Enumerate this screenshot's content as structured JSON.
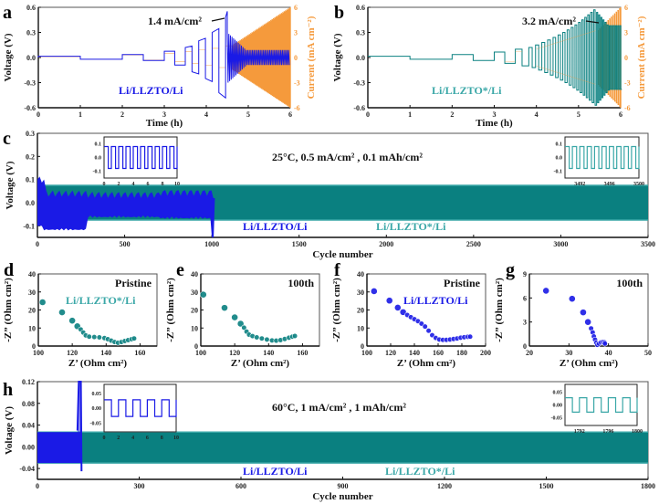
{
  "colors": {
    "blue": "#1a1ae6",
    "teal": "#0a8080",
    "teal_light": "#3aa7a7",
    "orange": "#f59a3c",
    "axis": "#333333"
  },
  "chart_data": [
    {
      "id": "a",
      "panel_letter": "a",
      "type": "line",
      "title": "",
      "xlabel": "Time (h)",
      "ylabel": "Voltage (V)",
      "ylabel_right": "Current (mA cm⁻²)",
      "xlim": [
        0,
        6
      ],
      "ylim": [
        -0.6,
        0.6
      ],
      "ylim_right": [
        -6,
        6
      ],
      "x_ticks": [
        "0",
        "1",
        "2",
        "3",
        "4",
        "5",
        "6"
      ],
      "y_ticks": [
        "-0.6",
        "-0.3",
        "0.0",
        "0.3",
        "0.6"
      ],
      "y_ticks_right": [
        "-6",
        "-3",
        "0",
        "3",
        "6"
      ],
      "annotation": "1.4 mA/cm²",
      "legend": "Li/LLZTO/Li",
      "series": [
        {
          "name": "Li/LLZTO/Li voltage",
          "color": "blue",
          "axis": "left",
          "steps": [
            [
              0,
              1,
              0.015
            ],
            [
              1,
              2,
              -0.02
            ],
            [
              2,
              2.5,
              0.035
            ],
            [
              2.5,
              3,
              -0.035
            ],
            [
              3,
              3.25,
              0.075
            ],
            [
              3.25,
              3.5,
              -0.09
            ],
            [
              3.5,
              3.66,
              0.12
            ],
            [
              3.66,
              3.82,
              -0.17
            ],
            [
              3.82,
              3.98,
              0.2
            ],
            [
              3.98,
              4.14,
              -0.25
            ],
            [
              4.14,
              4.3,
              0.3
            ],
            [
              4.3,
              4.46,
              -0.42
            ],
            [
              4.46,
              4.5,
              0.48
            ]
          ],
          "decay_region": {
            "start": 4.5,
            "end": 6,
            "amplitude_start": 0.3,
            "amplitude_end": 0.09
          }
        },
        {
          "name": "Current",
          "color": "orange",
          "axis": "right",
          "ramp": {
            "start": 4.6,
            "end": 6,
            "amplitude_start": 1.4,
            "amplitude_end": 6
          }
        }
      ]
    },
    {
      "id": "b",
      "panel_letter": "b",
      "type": "line",
      "xlabel": "Time (h)",
      "ylabel": "Voltage (V)",
      "ylabel_right": "Current (mA cm⁻²)",
      "xlim": [
        0,
        6
      ],
      "ylim": [
        -0.6,
        0.6
      ],
      "ylim_right": [
        -6,
        6
      ],
      "x_ticks": [
        "0",
        "1",
        "2",
        "3",
        "4",
        "5",
        "6"
      ],
      "y_ticks": [
        "-0.6",
        "-0.3",
        "0.0",
        "0.3",
        "0.6"
      ],
      "y_ticks_right": [
        "-6",
        "-3",
        "0",
        "3",
        "6"
      ],
      "annotation": "3.2 mA/cm²",
      "legend": "Li/LLZTO*/Li",
      "series": [
        {
          "name": "Li/LLZTO*/Li voltage",
          "color": "teal",
          "peak_voltage": 0.48,
          "peak_time": 5.4
        },
        {
          "name": "Current",
          "color": "orange",
          "axis": "right",
          "ramp": {
            "start": 5.45,
            "end": 6,
            "amplitude_start": 3.2,
            "amplitude_end": 6
          }
        }
      ]
    },
    {
      "id": "c",
      "panel_letter": "c",
      "type": "line",
      "xlabel": "Cycle number",
      "ylabel": "Voltage (V)",
      "xlim": [
        0,
        3500
      ],
      "ylim": [
        -0.15,
        0.3
      ],
      "x_ticks": [
        "0",
        "500",
        "1000",
        "1500",
        "2000",
        "2500",
        "3000",
        "3500"
      ],
      "y_ticks": [
        "-0.1",
        "0.0",
        "0.1",
        "0.2",
        "0.3"
      ],
      "annotation": "25°C, 0.5 mA/cm² , 0.1 mAh/cm²",
      "legends": [
        "Li/LLZTO/Li",
        "Li/LLZTO*/Li"
      ],
      "series": [
        {
          "name": "Li/LLZTO*/Li",
          "color": "teal",
          "x_end": 3500,
          "band": [
            -0.075,
            0.075
          ]
        },
        {
          "name": "Li/LLZTO/Li",
          "color": "blue",
          "x_end": 1010,
          "short_circuit_cycle": 1010
        }
      ],
      "insets": [
        {
          "xlim": [
            0,
            10
          ],
          "ylim": [
            -0.15,
            0.15
          ],
          "x_ticks": [
            "0",
            "2",
            "4",
            "6",
            "8",
            "10"
          ],
          "y_ticks": [
            "-0.1",
            "0.0",
            "0.1"
          ],
          "color": "blue",
          "amplitude": 0.08,
          "periods": 10
        },
        {
          "xlim": [
            3490,
            3500
          ],
          "ylim": [
            -0.15,
            0.15
          ],
          "x_ticks": [
            "3492",
            "3496",
            "3500"
          ],
          "y_ticks": [
            "-0.1",
            "0.0",
            "0.1"
          ],
          "color": "teal_light",
          "amplitude": 0.08,
          "periods": 10
        }
      ]
    },
    {
      "id": "d",
      "panel_letter": "d",
      "type": "scatter",
      "xlabel": "Z’ (Ohm cm²)",
      "ylabel": "-Z” (Ohm cm²)",
      "xlim": [
        100,
        170
      ],
      "ylim": [
        0,
        40
      ],
      "x_ticks": [
        "100",
        "120",
        "140",
        "160"
      ],
      "y_ticks": [
        "0",
        "10",
        "20",
        "30",
        "40"
      ],
      "annotation": "Pristine",
      "legend": "Li/LLZTO*/Li",
      "color": "teal",
      "x": [
        102.5,
        114,
        120,
        123,
        125,
        126.5,
        128,
        130,
        133,
        136,
        139,
        141,
        143,
        145,
        147,
        149,
        151,
        153,
        155,
        156.5
      ],
      "y": [
        24.3,
        18.7,
        14.1,
        11.0,
        9.2,
        7.5,
        5.9,
        5.2,
        5.0,
        4.8,
        4.4,
        3.8,
        3.0,
        2.2,
        1.8,
        2.2,
        2.8,
        3.3,
        3.8,
        4.2
      ]
    },
    {
      "id": "e",
      "panel_letter": "e",
      "type": "scatter",
      "xlabel": "Z’ (Ohm cm²)",
      "ylabel": "-Z” (Ohm cm²)",
      "xlim": [
        100,
        170
      ],
      "ylim": [
        0,
        40
      ],
      "x_ticks": [
        "100",
        "120",
        "140",
        "160"
      ],
      "y_ticks": [
        "0",
        "10",
        "20",
        "30",
        "40"
      ],
      "annotation": "100th",
      "color": "teal",
      "x": [
        101.5,
        114,
        120,
        123.5,
        125.5,
        127,
        128.5,
        130.5,
        133,
        136,
        139,
        142,
        144.5,
        147,
        149.5,
        152,
        154,
        155.5
      ],
      "y": [
        28.5,
        21.2,
        15.9,
        12.4,
        10.2,
        8.0,
        6.3,
        5.5,
        4.8,
        4.2,
        3.6,
        3.1,
        3.0,
        3.3,
        3.9,
        4.6,
        5.2,
        5.6
      ]
    },
    {
      "id": "f",
      "panel_letter": "f",
      "type": "scatter",
      "xlabel": "Z’ (Ohm cm²)",
      "ylabel": "-Z” (Ohm cm²)",
      "xlim": [
        100,
        200
      ],
      "ylim": [
        0,
        40
      ],
      "x_ticks": [
        "100",
        "120",
        "140",
        "160",
        "180",
        "200"
      ],
      "y_ticks": [
        "0",
        "10",
        "20",
        "30",
        "40"
      ],
      "annotation": "Pristine",
      "legend": "Li/LLZTO/Li",
      "color": "blue",
      "x": [
        106,
        119,
        126,
        130.5,
        134,
        137,
        140,
        143,
        146,
        149,
        152,
        155,
        158,
        161,
        164,
        167,
        170,
        173,
        176,
        179,
        182,
        185,
        187
      ],
      "y": [
        30.4,
        25.2,
        21.3,
        18.8,
        17.2,
        16.0,
        14.9,
        13.8,
        12.4,
        10.8,
        8.5,
        6.0,
        4.5,
        3.6,
        3.4,
        3.4,
        3.6,
        3.9,
        4.2,
        4.6,
        4.9,
        5.1,
        5.2
      ]
    },
    {
      "id": "g",
      "panel_letter": "g",
      "type": "scatter",
      "xlabel": "Z’ (Ohm cm²)",
      "ylabel": "-Z” (Ohm cm²)",
      "xlim": [
        20,
        50
      ],
      "ylim": [
        0,
        9
      ],
      "x_ticks": [
        "20",
        "30",
        "40",
        "50"
      ],
      "y_ticks": [
        "0",
        "3",
        "6",
        "9"
      ],
      "annotation": "100th",
      "color": "blue",
      "x": [
        24.2,
        30.8,
        33.6,
        34.8,
        35.6,
        36.0,
        36.3,
        36.6,
        36.9,
        37.2,
        37.6,
        38.1,
        38.6,
        39.0,
        39.1
      ],
      "y": [
        6.9,
        5.9,
        4.2,
        3.0,
        2.2,
        1.7,
        1.2,
        0.8,
        0.4,
        0.15,
        0.3,
        0.45,
        0.5,
        0.45,
        0.3
      ]
    },
    {
      "id": "h",
      "panel_letter": "h",
      "type": "line",
      "xlabel": "Cycle number",
      "ylabel": "Voltage (V)",
      "xlim": [
        0,
        1800
      ],
      "ylim": [
        -0.06,
        0.12
      ],
      "x_ticks": [
        "0",
        "300",
        "600",
        "900",
        "1200",
        "1500",
        "1800"
      ],
      "y_ticks": [
        "-0.04",
        "0.00",
        "0.04",
        "0.08",
        "0.12"
      ],
      "annotation": "60°C, 1 mA/cm² , 1 mAh/cm²",
      "legends": [
        "Li/LLZTO/Li",
        "Li/LLZTO*/Li"
      ],
      "series": [
        {
          "name": "Li/LLZTO*/Li",
          "color": "teal",
          "x_end": 1800,
          "band": [
            -0.03,
            0.027
          ]
        },
        {
          "name": "Li/LLZTO/Li",
          "color": "blue",
          "x_end": 130,
          "band": [
            -0.03,
            0.027
          ],
          "failure_cycle": 125
        }
      ],
      "insets": [
        {
          "xlim": [
            0,
            10
          ],
          "ylim": [
            -0.08,
            0.08
          ],
          "x_ticks": [
            "0",
            "2",
            "4",
            "6",
            "8",
            "10"
          ],
          "y_ticks": [
            "-0.05",
            "0.00",
            "0.05"
          ],
          "color": "blue",
          "amplitude": 0.028,
          "periods": 5
        },
        {
          "xlim": [
            1790,
            1800
          ],
          "ylim": [
            -0.08,
            0.08
          ],
          "x_ticks": [
            "1792",
            "1796",
            "1800"
          ],
          "y_ticks": [
            "-0.05",
            "0.00",
            "0.05"
          ],
          "color": "teal_light",
          "amplitude": 0.028,
          "periods": 5
        }
      ]
    }
  ]
}
